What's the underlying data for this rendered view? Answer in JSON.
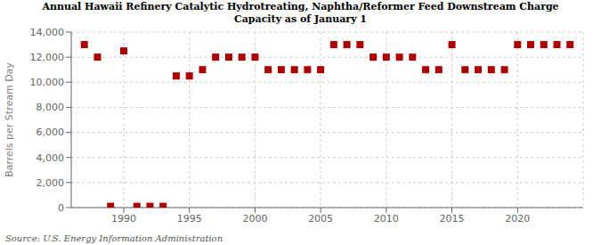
{
  "chart_data": {
    "type": "scatter",
    "title": "Annual Hawaii Refinery Catalytic Hydrotreating, Naphtha/Reformer Feed Downstream Charge\nCapacity as of January 1",
    "ylabel": "Barrels per Stream Day",
    "annotations": [
      "Source: U.S. Energy Information Administration"
    ],
    "x": [
      1987,
      1988,
      1989,
      1990,
      1991,
      1992,
      1993,
      1994,
      1995,
      1996,
      1997,
      1998,
      1999,
      2000,
      2001,
      2002,
      2003,
      2004,
      2005,
      2006,
      2007,
      2008,
      2009,
      2010,
      2011,
      2012,
      2013,
      2014,
      2015,
      2016,
      2017,
      2018,
      2019,
      2020,
      2021,
      2022,
      2023,
      2024
    ],
    "values": [
      13000,
      12000,
      100,
      12500,
      100,
      100,
      100,
      10500,
      10500,
      11000,
      12000,
      12000,
      12000,
      12000,
      11000,
      11000,
      11000,
      11000,
      11000,
      13000,
      13000,
      13000,
      12000,
      12000,
      12000,
      12000,
      11000,
      11000,
      13000,
      11000,
      11000,
      11000,
      11000,
      13000,
      13000,
      13000,
      13000,
      13000
    ],
    "color": "#aa0000",
    "marker": "square",
    "xlim": [
      1986,
      2025
    ],
    "xticks": [
      1990,
      1995,
      2000,
      2005,
      2010,
      2015,
      2020
    ],
    "ylim": [
      0,
      14000
    ],
    "yticks": [
      0,
      {
        "value": 2000,
        "label": "2,000"
      },
      {
        "value": 4000,
        "label": "4,000"
      },
      {
        "value": 6000,
        "label": "6,000"
      },
      {
        "value": 8000,
        "label": "8,000"
      },
      {
        "value": 10000,
        "label": "10,000"
      },
      {
        "value": 12000,
        "label": "12,000"
      },
      {
        "value": 14000,
        "label": "14,000"
      }
    ],
    "grid": true
  }
}
